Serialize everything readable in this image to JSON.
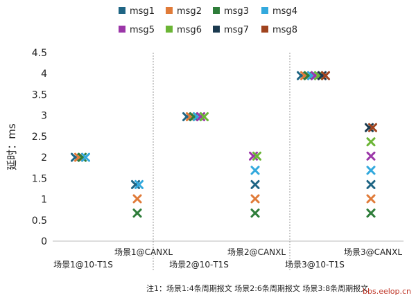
{
  "chart_data": {
    "type": "scatter",
    "ylabel": "延时：ms",
    "ylim": [
      0,
      4.5
    ],
    "yticks": [
      "0",
      "0.5",
      "1",
      "1.5",
      "2",
      "2.5",
      "3",
      "3.5",
      "4",
      "4.5"
    ],
    "grid": false,
    "legend_position": "top",
    "categories": [
      "场景1@10-T1S",
      "场景1@CANXL",
      "场景2@10-T1S",
      "场景2@CANXL",
      "场景3@10-T1S",
      "场景3@CANXL"
    ],
    "series": [
      {
        "name": "msg1",
        "color": "#1f6584",
        "values": [
          2.0,
          1.35,
          2.97,
          1.35,
          3.95,
          1.35
        ]
      },
      {
        "name": "msg2",
        "color": "#e07b39",
        "values": [
          2.0,
          1.01,
          2.97,
          1.01,
          3.95,
          1.01
        ]
      },
      {
        "name": "msg3",
        "color": "#2e7d3a",
        "values": [
          2.0,
          0.67,
          2.97,
          0.67,
          3.95,
          0.67
        ]
      },
      {
        "name": "msg4",
        "color": "#33a9dd",
        "values": [
          2.0,
          1.35,
          2.97,
          1.69,
          3.95,
          1.69
        ]
      },
      {
        "name": "msg5",
        "color": "#9b36a8",
        "values": [
          null,
          null,
          2.97,
          2.03,
          3.95,
          2.03
        ]
      },
      {
        "name": "msg6",
        "color": "#6bb535",
        "values": [
          null,
          null,
          2.97,
          2.03,
          3.95,
          2.37
        ]
      },
      {
        "name": "msg7",
        "color": "#1b3a4f",
        "values": [
          null,
          null,
          null,
          null,
          3.95,
          2.71
        ]
      },
      {
        "name": "msg8",
        "color": "#a0431e",
        "values": [
          null,
          null,
          null,
          null,
          3.95,
          2.71
        ]
      }
    ],
    "note": "注1：场景1:4条周期报文 场景2:6条周期报文 场景3:8条周期报文"
  },
  "watermark": "bbs.eelop.cn"
}
